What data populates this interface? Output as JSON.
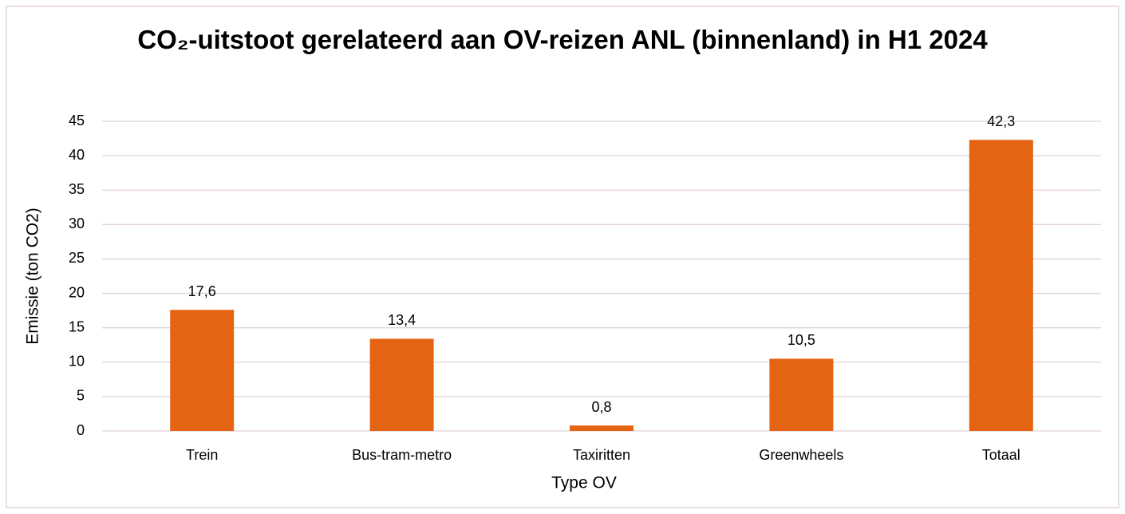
{
  "chart_data": {
    "type": "bar",
    "title": "CO₂-uitstoot gerelateerd aan OV-reizen ANL (binnenland) in H1 2024",
    "x_label": "Type OV",
    "y_label": "Emissie (ton CO2)",
    "categories": [
      "Trein",
      "Bus-tram-metro",
      "Taxiritten",
      "Greenwheels",
      "Totaal"
    ],
    "values": [
      17.6,
      13.4,
      0.8,
      10.5,
      42.3
    ],
    "value_labels": [
      "17,6",
      "13,4",
      "0,8",
      "10,5",
      "42,3"
    ],
    "color": "#e46414",
    "ylim": [
      0,
      45
    ],
    "yticks": [
      0,
      5,
      10,
      15,
      20,
      25,
      30,
      35,
      40,
      45
    ],
    "grid": true
  }
}
